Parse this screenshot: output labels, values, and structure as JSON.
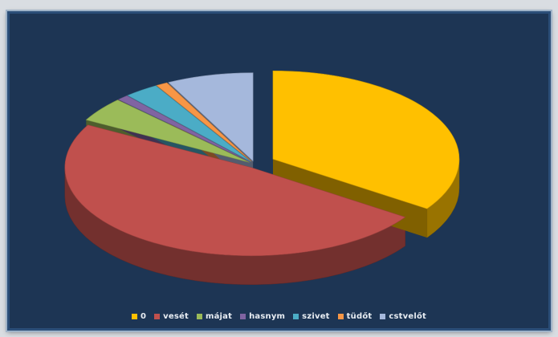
{
  "chart_data": {
    "type": "pie",
    "style": "3d-exploded",
    "background": "#1d3554",
    "legend_position": "bottom",
    "slices": [
      {
        "label": "0",
        "value": 34.5,
        "color": "#ffc000"
      },
      {
        "label": "vesét",
        "value": 48.5,
        "color": "#c0504d"
      },
      {
        "label": "májat",
        "value": 4.5,
        "color": "#9bbb59"
      },
      {
        "label": "hasnym",
        "value": 1.0,
        "color": "#8064a2"
      },
      {
        "label": "szivet",
        "value": 3.0,
        "color": "#4bacc6"
      },
      {
        "label": "tüdőt",
        "value": 1.0,
        "color": "#f79646"
      },
      {
        "label": "cstvelőt",
        "value": 7.5,
        "color": "#a5b8dc"
      }
    ]
  }
}
